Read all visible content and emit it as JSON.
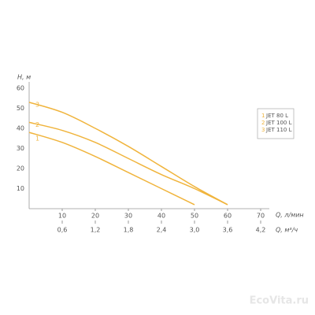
{
  "chart_data": {
    "type": "line",
    "y_label": "H, м",
    "x_label": "Q, л/мин",
    "x2_label": "Q, м³/ч",
    "xlim": [
      0,
      70
    ],
    "xticks": [
      10,
      20,
      30,
      40,
      50,
      60,
      70
    ],
    "x2lim": [
      0,
      4.2
    ],
    "x2ticks": [
      {
        "value": 0.6,
        "label": "0,6"
      },
      {
        "value": 1.2,
        "label": "1,2"
      },
      {
        "value": 1.8,
        "label": "1,8"
      },
      {
        "value": 2.4,
        "label": "2,4"
      },
      {
        "value": 3.0,
        "label": "3,0"
      },
      {
        "value": 3.6,
        "label": "3,6"
      },
      {
        "value": 4.2,
        "label": "4,2"
      }
    ],
    "ylim": [
      0,
      60
    ],
    "yticks": [
      10,
      20,
      30,
      40,
      50,
      60
    ],
    "grid": false,
    "legend": "right",
    "series": [
      {
        "name": "JET 80 L",
        "number": "1",
        "color": "#f0b43c",
        "x": [
          0,
          10,
          20,
          30,
          40,
          50
        ],
        "values": [
          38,
          33,
          26,
          18,
          10,
          2
        ]
      },
      {
        "name": "JET 100 L",
        "number": "2",
        "color": "#f0b43c",
        "x": [
          0,
          10,
          20,
          30,
          40,
          50,
          60
        ],
        "values": [
          43,
          39,
          33,
          25,
          17,
          10,
          2
        ]
      },
      {
        "name": "JET 110 L",
        "number": "3",
        "color": "#f0b43c",
        "x": [
          0,
          10,
          20,
          30,
          40,
          50,
          60
        ],
        "values": [
          53,
          48,
          40,
          31,
          21,
          11,
          2
        ]
      }
    ],
    "watermark": "EcoVita.ru"
  }
}
